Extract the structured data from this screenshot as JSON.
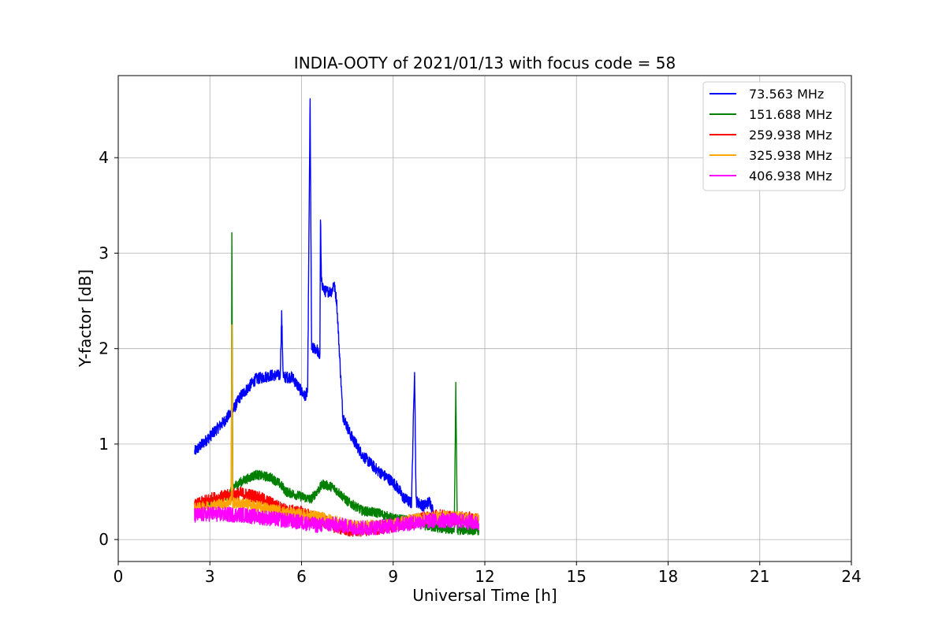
{
  "chart_data": {
    "type": "line",
    "title": "INDIA-OOTY of 2021/01/13 with focus code = 58",
    "xlabel": "Universal Time [h]",
    "ylabel": "Y-factor [dB]",
    "xlim": [
      0,
      24
    ],
    "ylim": [
      -0.23,
      4.86
    ],
    "xticks": [
      0,
      3,
      6,
      9,
      12,
      15,
      18,
      21,
      24
    ],
    "yticks": [
      0,
      1,
      2,
      3,
      4
    ],
    "grid": true,
    "legend_position": "top-right",
    "series": [
      {
        "name": " 73.563 MHz",
        "color": "#0000ff",
        "noise": 0.06,
        "points": [
          [
            2.5,
            0.92
          ],
          [
            3.0,
            1.08
          ],
          [
            3.5,
            1.25
          ],
          [
            3.75,
            1.35
          ],
          [
            4.0,
            1.5
          ],
          [
            4.5,
            1.68
          ],
          [
            5.0,
            1.72
          ],
          [
            5.3,
            1.72
          ],
          [
            5.35,
            2.35
          ],
          [
            5.4,
            1.7
          ],
          [
            5.7,
            1.7
          ],
          [
            5.9,
            1.6
          ],
          [
            6.1,
            1.5
          ],
          [
            6.2,
            1.55
          ],
          [
            6.28,
            4.6
          ],
          [
            6.33,
            2.0
          ],
          [
            6.5,
            2.0
          ],
          [
            6.6,
            1.9
          ],
          [
            6.62,
            3.38
          ],
          [
            6.65,
            2.7
          ],
          [
            6.75,
            2.6
          ],
          [
            7.0,
            2.6
          ],
          [
            7.05,
            2.7
          ],
          [
            7.15,
            2.5
          ],
          [
            7.25,
            1.9
          ],
          [
            7.35,
            1.3
          ],
          [
            7.6,
            1.1
          ],
          [
            8.0,
            0.88
          ],
          [
            8.5,
            0.72
          ],
          [
            9.0,
            0.6
          ],
          [
            9.2,
            0.52
          ],
          [
            9.3,
            0.45
          ],
          [
            9.5,
            0.4
          ],
          [
            9.6,
            0.38
          ],
          [
            9.7,
            1.8
          ],
          [
            9.75,
            0.4
          ],
          [
            10.0,
            0.35
          ],
          [
            10.2,
            0.4
          ],
          [
            10.3,
            0.3
          ]
        ]
      },
      {
        "name": "151.688 MHz",
        "color": "#008000",
        "noise": 0.05,
        "points": [
          [
            2.5,
            0.3
          ],
          [
            3.0,
            0.38
          ],
          [
            3.5,
            0.45
          ],
          [
            3.7,
            0.5
          ],
          [
            3.72,
            3.2
          ],
          [
            3.75,
            0.55
          ],
          [
            4.0,
            0.6
          ],
          [
            4.5,
            0.68
          ],
          [
            5.0,
            0.65
          ],
          [
            5.3,
            0.58
          ],
          [
            5.5,
            0.5
          ],
          [
            6.0,
            0.45
          ],
          [
            6.3,
            0.42
          ],
          [
            6.5,
            0.5
          ],
          [
            6.7,
            0.58
          ],
          [
            7.0,
            0.55
          ],
          [
            7.2,
            0.5
          ],
          [
            7.5,
            0.4
          ],
          [
            8.0,
            0.3
          ],
          [
            8.5,
            0.28
          ],
          [
            9.0,
            0.22
          ],
          [
            9.5,
            0.2
          ],
          [
            10.0,
            0.15
          ],
          [
            10.5,
            0.12
          ],
          [
            11.0,
            0.1
          ],
          [
            11.05,
            1.6
          ],
          [
            11.1,
            0.1
          ],
          [
            11.5,
            0.1
          ],
          [
            11.8,
            0.1
          ]
        ]
      },
      {
        "name": "259.938 MHz",
        "color": "#ff0000",
        "noise": 0.07,
        "points": [
          [
            2.5,
            0.35
          ],
          [
            3.0,
            0.42
          ],
          [
            3.5,
            0.45
          ],
          [
            4.0,
            0.48
          ],
          [
            4.5,
            0.45
          ],
          [
            5.0,
            0.38
          ],
          [
            5.5,
            0.3
          ],
          [
            6.0,
            0.28
          ],
          [
            6.5,
            0.22
          ],
          [
            7.0,
            0.15
          ],
          [
            7.5,
            0.1
          ],
          [
            8.0,
            0.1
          ],
          [
            8.5,
            0.12
          ],
          [
            9.0,
            0.15
          ],
          [
            9.5,
            0.18
          ],
          [
            10.0,
            0.22
          ],
          [
            10.5,
            0.25
          ],
          [
            11.0,
            0.22
          ],
          [
            11.5,
            0.22
          ],
          [
            11.8,
            0.2
          ]
        ]
      },
      {
        "name": "325.938 MHz",
        "color": "#ffa500",
        "noise": 0.06,
        "points": [
          [
            2.5,
            0.32
          ],
          [
            3.0,
            0.35
          ],
          [
            3.5,
            0.38
          ],
          [
            3.7,
            0.4
          ],
          [
            3.72,
            2.2
          ],
          [
            3.75,
            0.38
          ],
          [
            4.0,
            0.38
          ],
          [
            4.5,
            0.35
          ],
          [
            5.0,
            0.32
          ],
          [
            5.5,
            0.28
          ],
          [
            6.0,
            0.26
          ],
          [
            6.5,
            0.24
          ],
          [
            7.0,
            0.2
          ],
          [
            7.5,
            0.15
          ],
          [
            8.0,
            0.14
          ],
          [
            8.5,
            0.15
          ],
          [
            9.0,
            0.16
          ],
          [
            9.5,
            0.2
          ],
          [
            10.0,
            0.22
          ],
          [
            10.5,
            0.24
          ],
          [
            11.0,
            0.24
          ],
          [
            11.5,
            0.22
          ],
          [
            11.8,
            0.22
          ]
        ]
      },
      {
        "name": "406.938 MHz",
        "color": "#ff00ff",
        "noise": 0.08,
        "points": [
          [
            2.5,
            0.25
          ],
          [
            3.0,
            0.27
          ],
          [
            3.5,
            0.26
          ],
          [
            4.0,
            0.26
          ],
          [
            4.5,
            0.24
          ],
          [
            5.0,
            0.22
          ],
          [
            5.5,
            0.2
          ],
          [
            6.0,
            0.18
          ],
          [
            6.5,
            0.15
          ],
          [
            7.0,
            0.16
          ],
          [
            7.5,
            0.14
          ],
          [
            8.0,
            0.12
          ],
          [
            8.5,
            0.13
          ],
          [
            9.0,
            0.15
          ],
          [
            9.5,
            0.17
          ],
          [
            10.0,
            0.19
          ],
          [
            10.5,
            0.2
          ],
          [
            11.0,
            0.2
          ],
          [
            11.5,
            0.18
          ],
          [
            11.8,
            0.17
          ]
        ]
      }
    ]
  }
}
